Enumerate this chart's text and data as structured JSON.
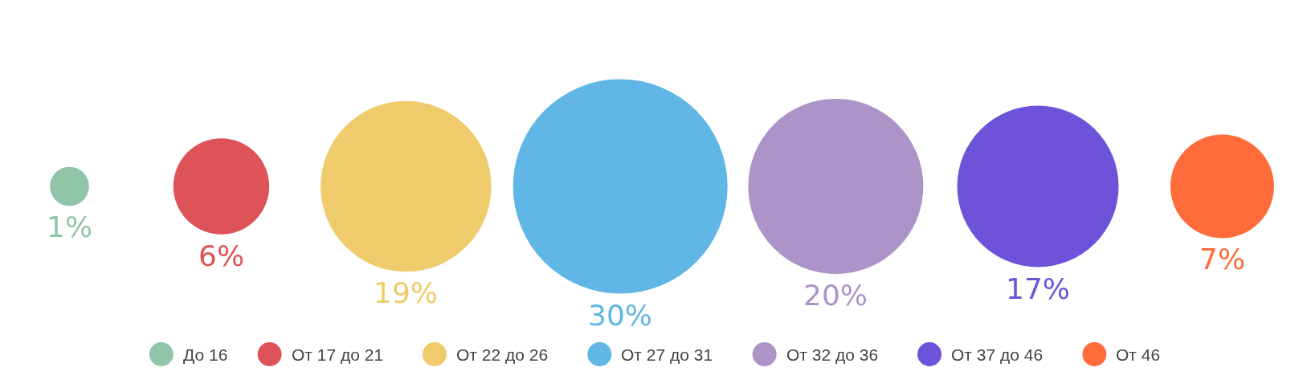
{
  "chart_data": {
    "type": "other",
    "categories": [
      "До 16",
      "От 17 до 21",
      "От 22 до 26",
      "От 27 до 31",
      "От 32 до 36",
      "От 37 до 46",
      "От 46"
    ],
    "values": [
      1,
      6,
      19,
      30,
      20,
      17,
      7
    ],
    "value_labels": [
      "1%",
      "6%",
      "19%",
      "30%",
      "20%",
      "17%",
      "7%"
    ],
    "colors": [
      "#90c5a9",
      "#dd5357",
      "#efcb6b",
      "#60b6e4",
      "#ac93c8",
      "#6c53da",
      "#ff6b3b"
    ]
  }
}
